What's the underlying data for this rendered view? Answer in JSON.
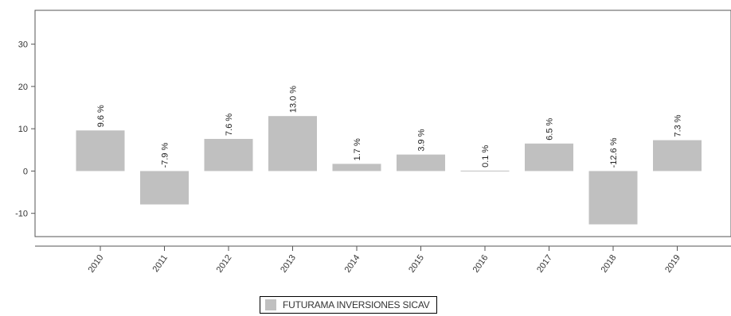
{
  "chart_data": {
    "type": "bar",
    "categories": [
      "2010",
      "2011",
      "2012",
      "2013",
      "2014",
      "2015",
      "2016",
      "2017",
      "2018",
      "2019"
    ],
    "series": [
      {
        "name": "FUTURAMA INVERSIONES SICAV",
        "values": [
          9.6,
          -7.9,
          7.6,
          13.0,
          1.7,
          3.9,
          0.1,
          6.5,
          -12.6,
          7.3
        ],
        "labels": [
          "9.6 %",
          "-7.9 %",
          "7.6 %",
          "13.0 %",
          "1.7 %",
          "3.9 %",
          "0.1 %",
          "6.5 %",
          "-12.6 %",
          "7.3 %"
        ]
      }
    ],
    "y_ticks": [
      -10,
      0,
      10,
      20,
      30
    ],
    "ylim": [
      -15.5,
      38
    ],
    "title": "",
    "xlabel": "",
    "ylabel": "",
    "grid": false,
    "legend_position": "bottom-center",
    "colors": {
      "bar": "#c0c0c0",
      "axis": "#333333",
      "frame": "#555555"
    }
  }
}
